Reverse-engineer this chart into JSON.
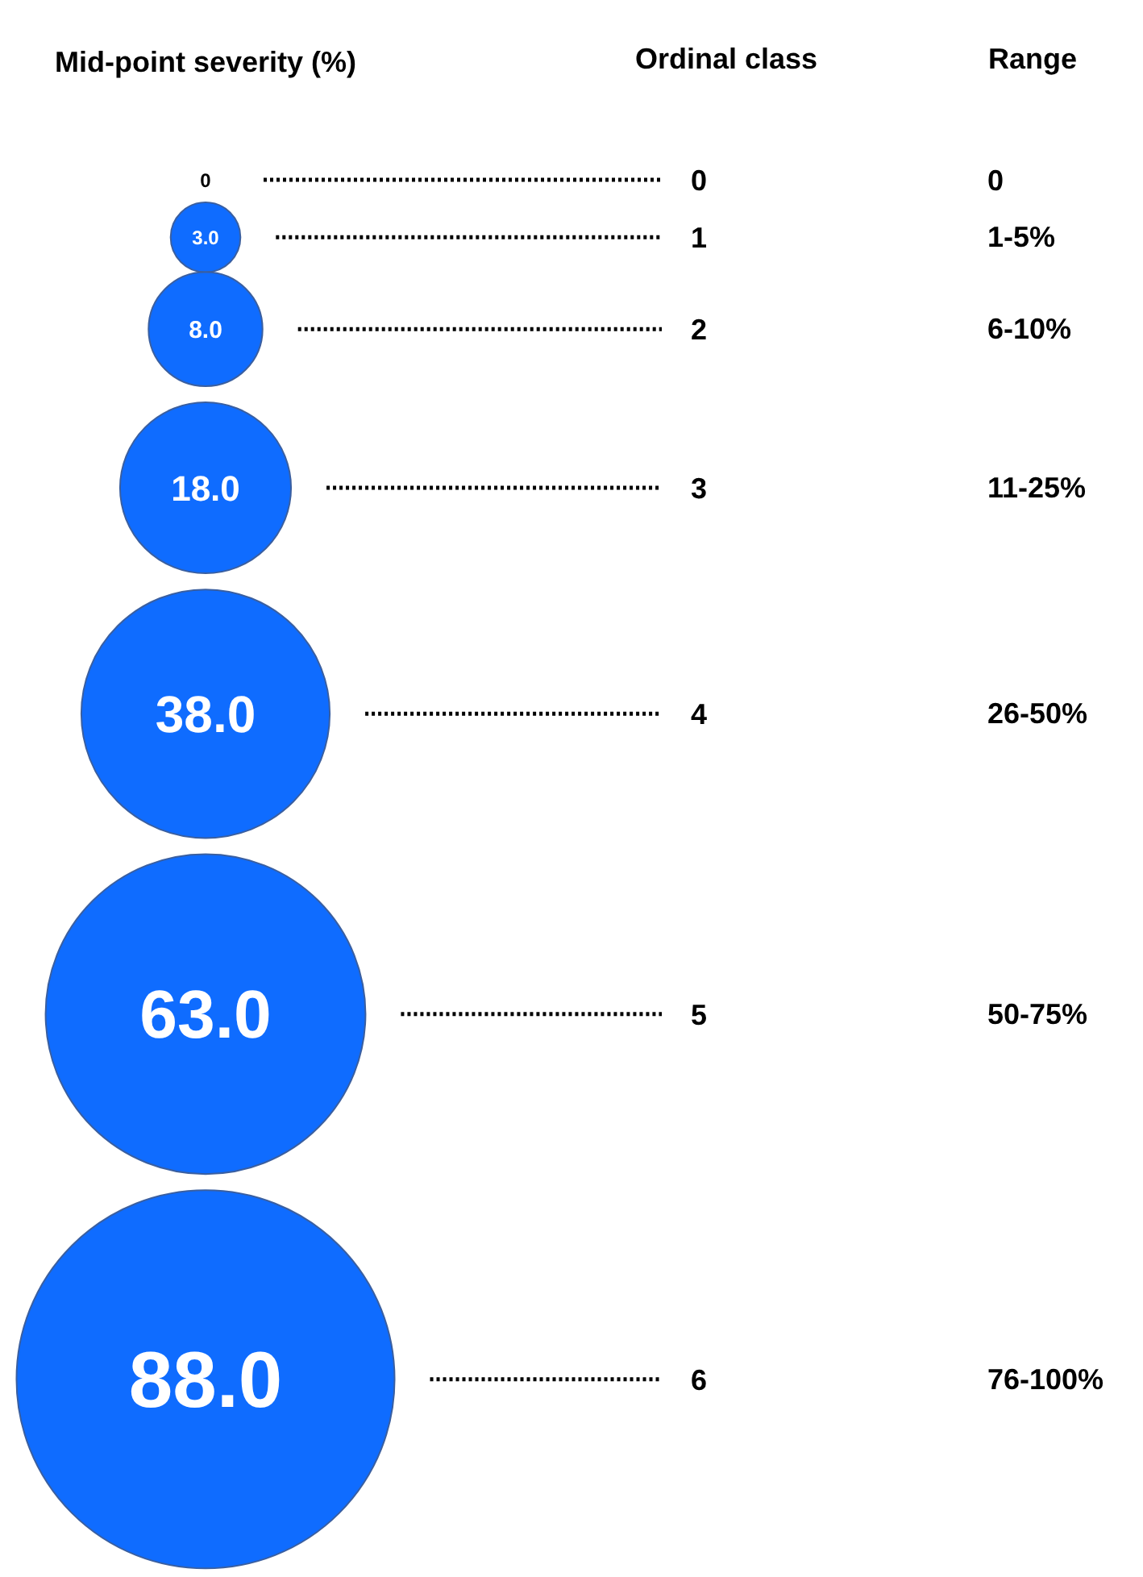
{
  "chart_data": {
    "type": "other",
    "xlabel": "Mid-point severity (%)",
    "categories": [
      "0",
      "1",
      "2",
      "3",
      "4",
      "5",
      "6"
    ],
    "values": [
      0,
      3.0,
      8.0,
      18.0,
      38.0,
      63.0,
      88.0
    ],
    "value_labels": [
      "0",
      "3.0",
      "8.0",
      "18.0",
      "38.0",
      "63.0",
      "88.0"
    ],
    "color": "#0f6cff",
    "annotations": [
      "Ordinal class",
      "Range",
      "0",
      "1-5%",
      "6-10%",
      "11-25%",
      "26-50%",
      "50-75%",
      "76-100%"
    ]
  }
}
